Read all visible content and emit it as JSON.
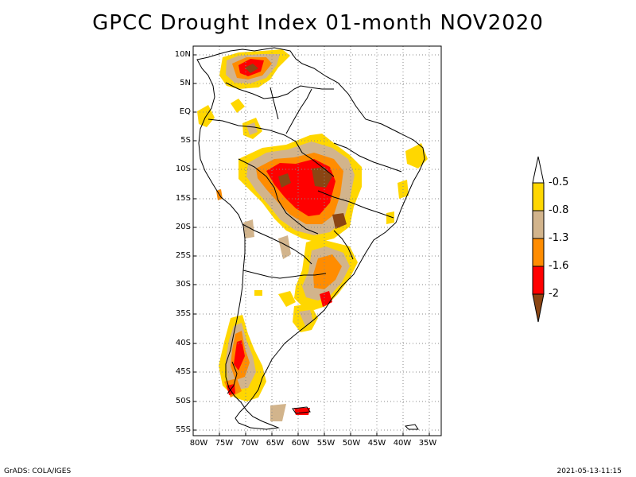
{
  "title": "GPCC Drought Index 01-month NOV2020",
  "footer": {
    "left": "GrADS: COLA/IGES",
    "right": "2021-05-13-11:15"
  },
  "map": {
    "lat_labels": [
      "10N",
      "5N",
      "EQ",
      "5S",
      "10S",
      "15S",
      "20S",
      "25S",
      "30S",
      "35S",
      "40S",
      "45S",
      "50S",
      "55S"
    ],
    "lon_labels": [
      "80W",
      "75W",
      "70W",
      "65W",
      "60W",
      "55W",
      "50W",
      "45W",
      "40W",
      "35W"
    ]
  },
  "legend": {
    "labels": [
      "-0.5",
      "-0.8",
      "-1.3",
      "-1.6",
      "-2"
    ],
    "colors": {
      "c1": "#ffd700",
      "c2": "#d2b48c",
      "c3": "#ff8c00",
      "c4": "#ff0000",
      "c5": "#8b4513"
    }
  }
}
